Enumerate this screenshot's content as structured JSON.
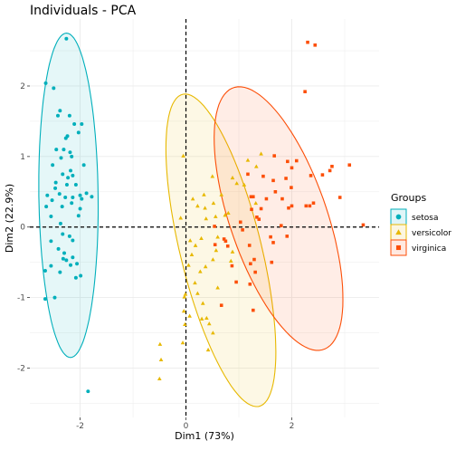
{
  "chart_data": {
    "type": "scatter",
    "title": "Individuals - PCA",
    "xlabel": "Dim1 (73%)",
    "ylabel": "Dim2 (22.9%)",
    "xlim": [
      -2.95,
      3.65
    ],
    "ylim": [
      -2.7,
      2.95
    ],
    "x_ticks": [
      -2,
      0,
      2
    ],
    "y_ticks": [
      -2,
      -1,
      0,
      1,
      2
    ],
    "grid": true,
    "reference_lines": {
      "x": 0,
      "y": 0
    },
    "legend": {
      "title": "Groups",
      "position": "right"
    },
    "series": [
      {
        "name": "setosa",
        "marker": "circle",
        "color": "#00AFBB",
        "ellipse": {
          "cx": -2.22,
          "cy": 0.45,
          "rx": 0.56,
          "ry": 2.3,
          "angle": 1
        },
        "points": [
          [
            -2.26,
            2.67
          ],
          [
            -2.65,
            2.04
          ],
          [
            -2.5,
            1.97
          ],
          [
            -2.42,
            1.58
          ],
          [
            -2.38,
            1.65
          ],
          [
            -2.2,
            1.58
          ],
          [
            -2.24,
            1.29
          ],
          [
            -2.27,
            1.26
          ],
          [
            -2.11,
            1.46
          ],
          [
            -2.31,
            1.1
          ],
          [
            -2.45,
            1.1
          ],
          [
            -2.19,
            1.06
          ],
          [
            -2.16,
            1.0
          ],
          [
            -2.36,
            0.98
          ],
          [
            -2.52,
            0.88
          ],
          [
            -2.18,
            0.8
          ],
          [
            -2.14,
            0.73
          ],
          [
            -2.23,
            0.7
          ],
          [
            -2.33,
            0.75
          ],
          [
            -2.25,
            0.6
          ],
          [
            -2.46,
            0.63
          ],
          [
            -2.62,
            0.45
          ],
          [
            -2.39,
            0.47
          ],
          [
            -2.47,
            0.55
          ],
          [
            -1.97,
            1.46
          ],
          [
            -2.03,
            1.34
          ],
          [
            -1.93,
            0.88
          ],
          [
            -2.08,
            0.6
          ],
          [
            -2.0,
            0.45
          ],
          [
            -1.97,
            0.4
          ],
          [
            -1.88,
            0.48
          ],
          [
            -1.78,
            0.43
          ],
          [
            -2.14,
            0.42
          ],
          [
            -2.28,
            0.42
          ],
          [
            -2.16,
            0.34
          ],
          [
            -2.34,
            0.29
          ],
          [
            -2.53,
            0.38
          ],
          [
            -2.64,
            0.29
          ],
          [
            -2.55,
            0.15
          ],
          [
            -2.37,
            0.05
          ],
          [
            -2.55,
            -0.2
          ],
          [
            -2.41,
            -0.31
          ],
          [
            -2.55,
            -0.55
          ],
          [
            -2.14,
            -0.43
          ],
          [
            -2.32,
            -0.45
          ],
          [
            -2.26,
            -0.47
          ],
          [
            -2.3,
            -0.37
          ],
          [
            -2.14,
            -0.19
          ],
          [
            -2.33,
            -0.1
          ],
          [
            -2.2,
            -0.13
          ],
          [
            -2.03,
            0.16
          ],
          [
            -2.0,
            0.26
          ],
          [
            -2.06,
            -0.52
          ],
          [
            -2.18,
            -0.54
          ],
          [
            -1.99,
            -0.69
          ],
          [
            -2.08,
            -0.72
          ],
          [
            -2.38,
            -0.64
          ],
          [
            -2.66,
            -0.62
          ],
          [
            -2.48,
            -1.0
          ],
          [
            -2.66,
            -1.02
          ],
          [
            -1.85,
            -2.33
          ]
        ]
      },
      {
        "name": "versicolor",
        "marker": "triangle",
        "color": "#E7B800",
        "ellipse": {
          "cx": 0.66,
          "cy": -0.33,
          "rx": 0.75,
          "ry": 2.33,
          "angle": 19
        },
        "points": [
          [
            -0.05,
            1.01
          ],
          [
            0.5,
            0.72
          ],
          [
            0.88,
            0.7
          ],
          [
            0.96,
            0.62
          ],
          [
            1.17,
            0.95
          ],
          [
            1.33,
            0.86
          ],
          [
            1.42,
            1.04
          ],
          [
            0.67,
            0.46
          ],
          [
            1.1,
            0.6
          ],
          [
            0.34,
            0.46
          ],
          [
            0.13,
            0.4
          ],
          [
            0.52,
            0.34
          ],
          [
            0.22,
            0.3
          ],
          [
            0.36,
            0.27
          ],
          [
            1.32,
            0.34
          ],
          [
            0.8,
            0.2
          ],
          [
            0.74,
            0.17
          ],
          [
            0.56,
            0.15
          ],
          [
            0.38,
            0.12
          ],
          [
            -0.1,
            0.13
          ],
          [
            0.08,
            -0.19
          ],
          [
            0.29,
            -0.16
          ],
          [
            0.6,
            -0.14
          ],
          [
            0.18,
            -0.26
          ],
          [
            0.11,
            -0.39
          ],
          [
            0.57,
            -0.33
          ],
          [
            0.51,
            -0.46
          ],
          [
            0.88,
            -0.35
          ],
          [
            0.85,
            -0.48
          ],
          [
            0.37,
            -0.56
          ],
          [
            0.27,
            -0.63
          ],
          [
            0.05,
            -0.54
          ],
          [
            0.17,
            -0.79
          ],
          [
            0.22,
            -0.94
          ],
          [
            0.6,
            -0.86
          ],
          [
            -0.03,
            -0.99
          ],
          [
            -0.04,
            -1.19
          ],
          [
            -0.01,
            -0.95
          ],
          [
            0.07,
            -1.26
          ],
          [
            0.39,
            -1.29
          ],
          [
            0.44,
            -1.37
          ],
          [
            0.51,
            -1.5
          ],
          [
            0.42,
            -1.74
          ],
          [
            -0.02,
            -1.38
          ],
          [
            -0.06,
            -1.64
          ],
          [
            -0.49,
            -1.66
          ],
          [
            -0.47,
            -1.88
          ],
          [
            -0.5,
            -2.15
          ],
          [
            0.3,
            -1.3
          ],
          [
            0.32,
            -1.08
          ]
        ]
      },
      {
        "name": "virginica",
        "marker": "square",
        "color": "#FC4E07",
        "ellipse": {
          "cx": 1.75,
          "cy": 0.12,
          "rx": 0.88,
          "ry": 2.05,
          "angle": 27
        },
        "points": [
          [
            2.3,
            2.62
          ],
          [
            2.44,
            2.58
          ],
          [
            2.25,
            1.92
          ],
          [
            1.67,
            1.01
          ],
          [
            1.92,
            0.93
          ],
          [
            2.09,
            0.94
          ],
          [
            2.0,
            0.84
          ],
          [
            2.72,
            0.8
          ],
          [
            2.76,
            0.86
          ],
          [
            2.58,
            0.74
          ],
          [
            2.36,
            0.73
          ],
          [
            1.17,
            0.75
          ],
          [
            1.46,
            0.72
          ],
          [
            1.89,
            0.69
          ],
          [
            1.65,
            0.66
          ],
          [
            1.69,
            0.5
          ],
          [
            1.99,
            0.56
          ],
          [
            1.82,
            0.4
          ],
          [
            1.52,
            0.4
          ],
          [
            1.27,
            0.43
          ],
          [
            1.23,
            0.43
          ],
          [
            2.27,
            0.3
          ],
          [
            2.91,
            0.42
          ],
          [
            2.34,
            0.3
          ],
          [
            2.0,
            0.3
          ],
          [
            1.42,
            0.26
          ],
          [
            1.94,
            0.27
          ],
          [
            1.34,
            0.14
          ],
          [
            1.03,
            0.07
          ],
          [
            1.07,
            -0.04
          ],
          [
            1.8,
            0.02
          ],
          [
            1.38,
            0.11
          ],
          [
            2.41,
            0.34
          ],
          [
            0.54,
            0.01
          ],
          [
            0.72,
            -0.17
          ],
          [
            1.2,
            -0.26
          ],
          [
            1.6,
            -0.14
          ],
          [
            1.24,
            0.25
          ],
          [
            0.75,
            -0.2
          ],
          [
            1.29,
            -0.46
          ],
          [
            1.65,
            -0.22
          ],
          [
            1.91,
            -0.13
          ],
          [
            1.62,
            -0.5
          ],
          [
            1.22,
            -0.52
          ],
          [
            1.31,
            -0.64
          ],
          [
            0.79,
            -0.27
          ],
          [
            0.87,
            -0.55
          ],
          [
            0.95,
            -0.78
          ],
          [
            1.21,
            -0.81
          ],
          [
            0.67,
            -1.11
          ],
          [
            1.27,
            -1.18
          ],
          [
            3.35,
            0.03
          ],
          [
            3.09,
            0.88
          ],
          [
            0.55,
            -0.25
          ]
        ]
      }
    ]
  }
}
